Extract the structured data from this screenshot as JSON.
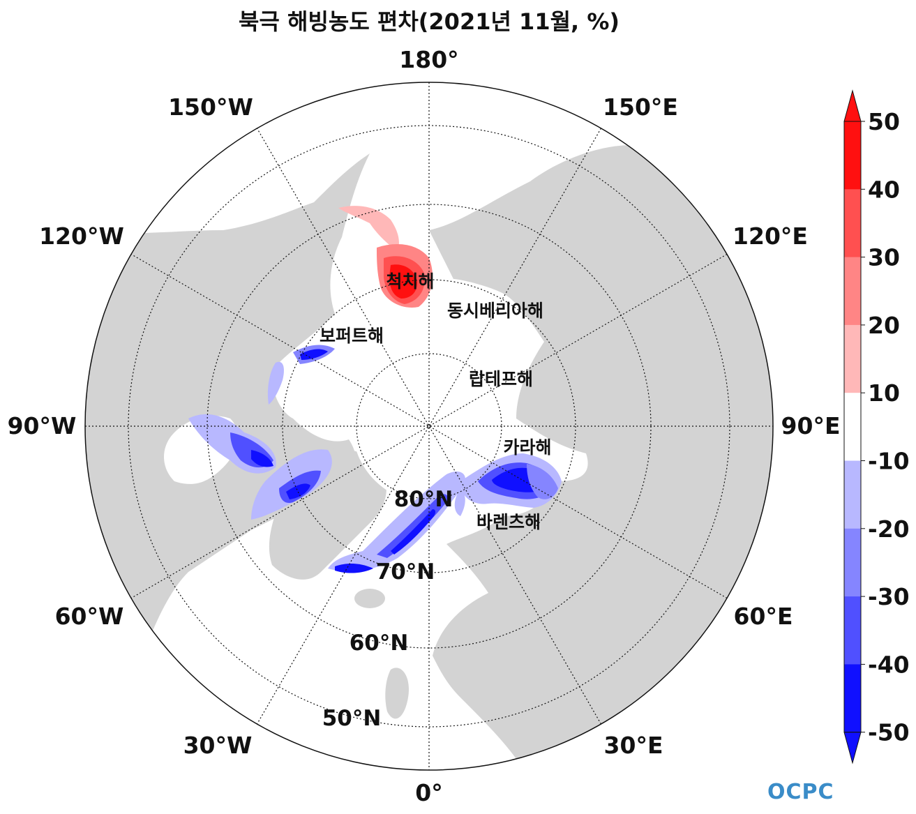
{
  "title": "북극 해빙농도 편차(2021년 11월, %)",
  "map": {
    "projection": "north-polar-stereographic",
    "land_color": "#d3d3d3",
    "ocean_color": "#ffffff",
    "longitude_labels": [
      "180°",
      "150°E",
      "120°E",
      "90°E",
      "60°E",
      "30°E",
      "0°",
      "30°W",
      "60°W",
      "90°W",
      "120°W",
      "150°W"
    ],
    "latitude_labels": [
      "80°N",
      "70°N",
      "60°N",
      "50°N"
    ],
    "sea_labels": [
      "척치해",
      "동시베리아해",
      "보퍼트해",
      "랍테프해",
      "카라해",
      "바렌츠해"
    ]
  },
  "colorbar": {
    "ticks": [
      "50",
      "40",
      "30",
      "20",
      "10",
      "-10",
      "-20",
      "-30",
      "-40",
      "-50"
    ],
    "colors": [
      "#ff1010",
      "#ff5050",
      "#ff8585",
      "#ffb8b8",
      "#ffffff",
      "#b8b8ff",
      "#8585ff",
      "#5050ff",
      "#1010ff"
    ],
    "extend": "both"
  },
  "logo": "OCPC"
}
